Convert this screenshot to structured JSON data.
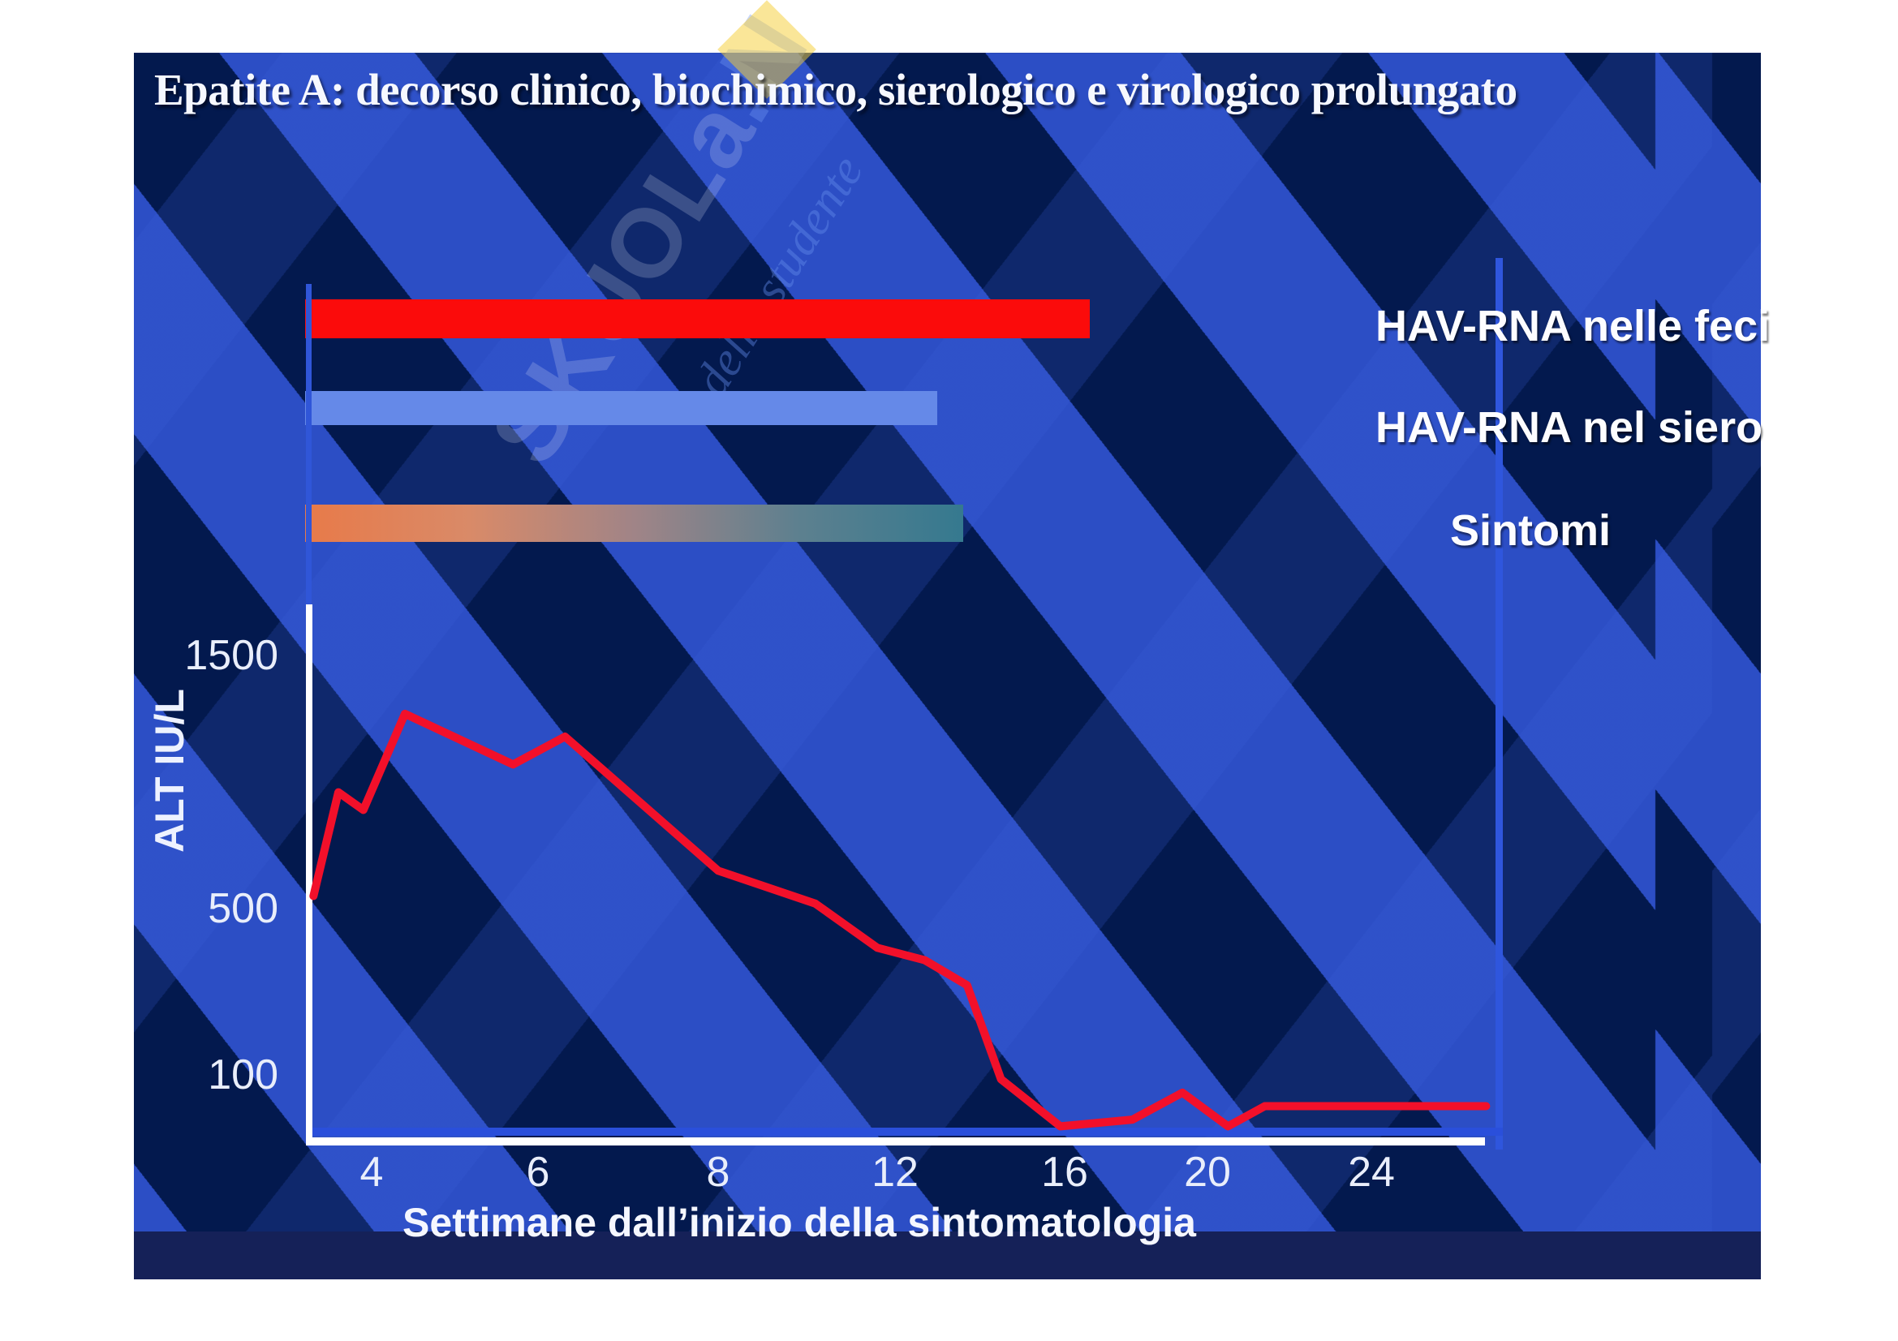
{
  "slide": {
    "title": "Epatite A: decorso clinico, biochimico, sierologico e virologico prolungato",
    "watermark": {
      "brand": "SKUOLa",
      "suffix": ".N",
      "tagline": "dello studente"
    },
    "legend": [
      {
        "id": "feci",
        "label": "HAV-RNA nelle feci"
      },
      {
        "id": "siero",
        "label": "HAV-RNA nel siero"
      },
      {
        "id": "sintomi",
        "label": "Sintomi"
      }
    ],
    "colors": {
      "background_navy": "#03194e",
      "stripe_blue": "#2c4ec5",
      "axis_white": "#ffffff",
      "axis_blue": "#2d52dc",
      "footer_band": "#152158"
    }
  },
  "chart_data": {
    "type": "line",
    "title": "Epatite A: decorso clinico, biochimico, sierologico e virologico prolungato",
    "xlabel": "Settimane dall’inizio della sintomatologia",
    "ylabel": "ALT IU/L",
    "x_ticks": [
      4,
      6,
      8,
      12,
      16,
      20,
      24
    ],
    "y_ticks": [
      1500,
      500,
      100
    ],
    "xlim": [
      3.2,
      27
    ],
    "ylim": [
      0,
      1700
    ],
    "grid": false,
    "legend_position": "right",
    "series": [
      {
        "name": "ALT",
        "color": "#f2102a",
        "points": [
          [
            3.3,
            540
          ],
          [
            3.6,
            950
          ],
          [
            3.9,
            880
          ],
          [
            4.4,
            1260
          ],
          [
            5.7,
            1060
          ],
          [
            6.3,
            1170
          ],
          [
            8,
            640
          ],
          [
            10.2,
            510
          ],
          [
            11.6,
            400
          ],
          [
            12.7,
            370
          ],
          [
            13.7,
            310
          ],
          [
            14.5,
            90
          ],
          [
            15.9,
            20
          ],
          [
            17.9,
            30
          ],
          [
            19.3,
            70
          ],
          [
            20.5,
            20
          ],
          [
            21.4,
            50
          ],
          [
            26.8,
            50
          ]
        ]
      }
    ],
    "bars": [
      {
        "name": "HAV-RNA nelle feci",
        "start_week": 3.2,
        "end_week": 16.7,
        "color": "#fb0b0b"
      },
      {
        "name": "HAV-RNA nel siero",
        "start_week": 3.2,
        "end_week": 13.0,
        "color": "#6589e8"
      },
      {
        "name": "Sintomi",
        "start_week": 3.2,
        "end_week": 13.6,
        "color_stops": [
          "#e87a49",
          "#d98a68",
          "#a08487",
          "#5d808f",
          "#35798f"
        ]
      }
    ],
    "calibration": {
      "x_anchors": [
        [
          4,
          458
        ],
        [
          6,
          663
        ],
        [
          8,
          885
        ],
        [
          12,
          1103
        ],
        [
          16,
          1312
        ],
        [
          20,
          1488
        ],
        [
          24,
          1690
        ]
      ],
      "y_anchors": [
        [
          1500,
          805
        ],
        [
          500,
          1117
        ],
        [
          100,
          1322
        ],
        [
          0,
          1405
        ]
      ]
    }
  }
}
